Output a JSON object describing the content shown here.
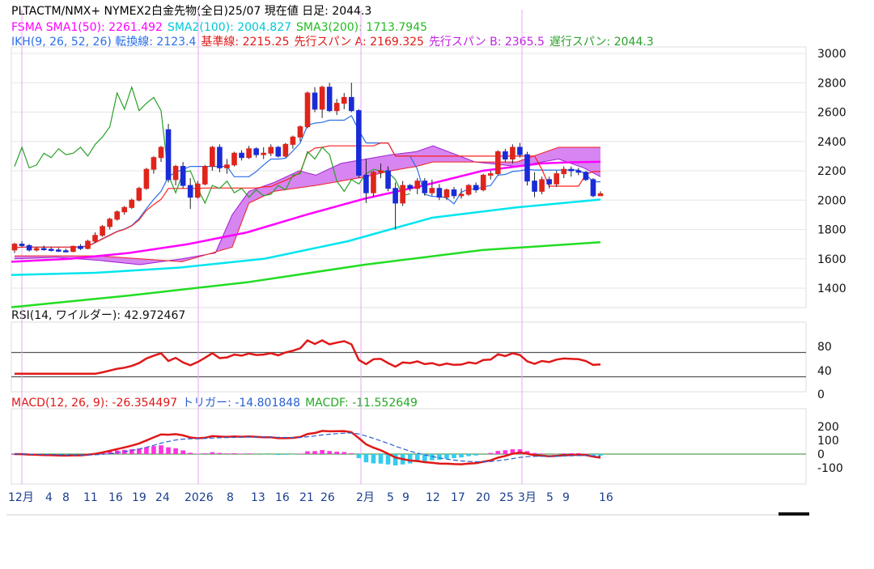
{
  "header": {
    "line1": "PLTACTM/NMX+ NYMEX2白金先物(全日)25/07  現在値 日足: 2044.3",
    "fsma_label": "FSMA SMA1(50): 2261.492",
    "sma2_label": "SMA2(100): 2004.827",
    "sma3_label": "SMA3(200): 1713.7945",
    "ikh_label": "IKH(9, 26, 52, 26) 転換線: 2123.4",
    "kijun_label": "基準線: 2215.25",
    "senkou_a_label": "先行スパン A: 2169.325",
    "senkou_b_label": "先行スパン B: 2365.5",
    "chikou_label": "遅行スパン: 2044.3"
  },
  "rsi_header": "RSI(14, ワイルダー): 42.972467",
  "macd_header": {
    "macd": "MACD(12, 26, 9): -26.354497",
    "trigger": "トリガー: -14.801848",
    "macdf": "MACDF: -11.552649"
  },
  "colors": {
    "up": "#e0241b",
    "down": "#1a2bd8",
    "sma1": "#ff00ff",
    "sma2": "#00e5ee",
    "sma3": "#22dd22",
    "tenkan": "#2a6fe8",
    "kijun": "#ff2020",
    "cloud": "#d070ee",
    "chikou": "#2aa02a",
    "grid": "#e6e6e6",
    "vline": "#e9a6f5"
  },
  "chart_data": [
    {
      "type": "candlestick",
      "title": "PLTACTM/NMX+ NYMEX2白金先物(全日)25/07",
      "y_ticks": [
        1400,
        1600,
        1800,
        2000,
        2200,
        2400,
        2600,
        2800,
        3000
      ],
      "ylim": [
        1300,
        3100
      ],
      "x_tick_labels": [
        "12月",
        "4",
        "8",
        "11",
        "16",
        "19",
        "24",
        "2026",
        "8",
        "13",
        "16",
        "21",
        "26",
        "2月",
        "5",
        "9",
        "12",
        "17",
        "20",
        "25",
        "3月",
        "5",
        "9",
        "16"
      ],
      "candles": [
        [
          1660,
          1710,
          1640,
          1700
        ],
        [
          1700,
          1720,
          1680,
          1690
        ],
        [
          1690,
          1700,
          1650,
          1660
        ],
        [
          1660,
          1680,
          1650,
          1670
        ],
        [
          1670,
          1690,
          1655,
          1665
        ],
        [
          1665,
          1680,
          1650,
          1660
        ],
        [
          1660,
          1675,
          1645,
          1655
        ],
        [
          1655,
          1670,
          1645,
          1650
        ],
        [
          1650,
          1690,
          1645,
          1685
        ],
        [
          1685,
          1700,
          1660,
          1670
        ],
        [
          1670,
          1730,
          1665,
          1720
        ],
        [
          1720,
          1780,
          1710,
          1760
        ],
        [
          1760,
          1830,
          1750,
          1820
        ],
        [
          1820,
          1880,
          1800,
          1870
        ],
        [
          1870,
          1930,
          1860,
          1920
        ],
        [
          1920,
          1960,
          1900,
          1950
        ],
        [
          1950,
          2010,
          1940,
          2000
        ],
        [
          2000,
          2090,
          1990,
          2080
        ],
        [
          2080,
          2220,
          2070,
          2210
        ],
        [
          2210,
          2300,
          2180,
          2290
        ],
        [
          2290,
          2370,
          2260,
          2360
        ],
        [
          2480,
          2520,
          2120,
          2140
        ],
        [
          2140,
          2240,
          2100,
          2230
        ],
        [
          2230,
          2260,
          2080,
          2100
        ],
        [
          2100,
          2150,
          1940,
          2020
        ],
        [
          2020,
          2130,
          2010,
          2110
        ],
        [
          2110,
          2240,
          2100,
          2230
        ],
        [
          2230,
          2370,
          2200,
          2360
        ],
        [
          2360,
          2380,
          2190,
          2220
        ],
        [
          2220,
          2280,
          2180,
          2240
        ],
        [
          2240,
          2330,
          2230,
          2320
        ],
        [
          2320,
          2340,
          2270,
          2290
        ],
        [
          2290,
          2370,
          2280,
          2350
        ],
        [
          2350,
          2360,
          2290,
          2310
        ],
        [
          2310,
          2360,
          2280,
          2320
        ],
        [
          2320,
          2380,
          2300,
          2360
        ],
        [
          2360,
          2370,
          2290,
          2300
        ],
        [
          2300,
          2390,
          2290,
          2380
        ],
        [
          2380,
          2440,
          2350,
          2430
        ],
        [
          2430,
          2510,
          2400,
          2500
        ],
        [
          2500,
          2740,
          2490,
          2730
        ],
        [
          2730,
          2770,
          2600,
          2620
        ],
        [
          2620,
          2780,
          2560,
          2770
        ],
        [
          2770,
          2800,
          2600,
          2610
        ],
        [
          2610,
          2690,
          2580,
          2660
        ],
        [
          2660,
          2730,
          2620,
          2700
        ],
        [
          2700,
          2800,
          2600,
          2610
        ],
        [
          2610,
          2620,
          2150,
          2170
        ],
        [
          2170,
          2280,
          1980,
          2050
        ],
        [
          2050,
          2200,
          2020,
          2190
        ],
        [
          2190,
          2250,
          2150,
          2200
        ],
        [
          2200,
          2230,
          2060,
          2080
        ],
        [
          2080,
          2120,
          1800,
          1980
        ],
        [
          1980,
          2130,
          1960,
          2100
        ],
        [
          2100,
          2110,
          2060,
          2080
        ],
        [
          2080,
          2150,
          2040,
          2130
        ],
        [
          2130,
          2150,
          2030,
          2050
        ],
        [
          2050,
          2140,
          2030,
          2080
        ],
        [
          2080,
          2110,
          2000,
          2020
        ],
        [
          2020,
          2080,
          2000,
          2070
        ],
        [
          2070,
          2090,
          2010,
          2030
        ],
        [
          2030,
          2080,
          2010,
          2040
        ],
        [
          2040,
          2110,
          2030,
          2100
        ],
        [
          2100,
          2120,
          2050,
          2070
        ],
        [
          2070,
          2180,
          2060,
          2170
        ],
        [
          2170,
          2200,
          2140,
          2180
        ],
        [
          2180,
          2340,
          2170,
          2330
        ],
        [
          2330,
          2350,
          2260,
          2280
        ],
        [
          2280,
          2380,
          2250,
          2360
        ],
        [
          2360,
          2390,
          2290,
          2310
        ],
        [
          2310,
          2330,
          2100,
          2130
        ],
        [
          2130,
          2190,
          2020,
          2060
        ],
        [
          2060,
          2160,
          2040,
          2140
        ],
        [
          2140,
          2160,
          2080,
          2110
        ],
        [
          2110,
          2200,
          2090,
          2180
        ],
        [
          2180,
          2230,
          2150,
          2210
        ],
        [
          2210,
          2230,
          2160,
          2200
        ],
        [
          2200,
          2220,
          2170,
          2190
        ],
        [
          2190,
          2200,
          2130,
          2140
        ],
        [
          2140,
          2150,
          2020,
          2030
        ],
        [
          2030,
          2060,
          2030,
          2044
        ]
      ],
      "sma1": [
        [
          0,
          1580
        ],
        [
          10,
          1600
        ],
        [
          20,
          1640
        ],
        [
          30,
          1700
        ],
        [
          40,
          1780
        ],
        [
          50,
          1900
        ],
        [
          60,
          2010
        ],
        [
          70,
          2100
        ],
        [
          80,
          2200
        ],
        [
          90,
          2250
        ],
        [
          95,
          2258
        ],
        [
          100,
          2261
        ]
      ],
      "sma2": [
        [
          0,
          1490
        ],
        [
          20,
          1505
        ],
        [
          40,
          1540
        ],
        [
          60,
          1600
        ],
        [
          80,
          1720
        ],
        [
          90,
          1800
        ],
        [
          100,
          1880
        ],
        [
          120,
          1950
        ],
        [
          140,
          2004
        ]
      ],
      "sma3": [
        [
          0,
          1270
        ],
        [
          40,
          1350
        ],
        [
          80,
          1440
        ],
        [
          120,
          1560
        ],
        [
          160,
          1660
        ],
        [
          200,
          1713
        ]
      ],
      "senkou_a": [
        [
          0,
          1600
        ],
        [
          10,
          1610
        ],
        [
          20,
          1590
        ],
        [
          30,
          1560
        ],
        [
          40,
          1600
        ],
        [
          48,
          1640
        ],
        [
          52,
          1900
        ],
        [
          56,
          2060
        ],
        [
          62,
          2120
        ],
        [
          68,
          2200
        ],
        [
          72,
          2170
        ],
        [
          78,
          2250
        ],
        [
          84,
          2280
        ],
        [
          90,
          2310
        ],
        [
          96,
          2330
        ],
        [
          100,
          2370
        ],
        [
          110,
          2260
        ],
        [
          120,
          2230
        ],
        [
          130,
          2280
        ],
        [
          136,
          2220
        ],
        [
          140,
          2160
        ]
      ],
      "senkou_b": [
        [
          0,
          1620
        ],
        [
          20,
          1620
        ],
        [
          40,
          1580
        ],
        [
          52,
          1680
        ],
        [
          56,
          1980
        ],
        [
          62,
          2060
        ],
        [
          72,
          2100
        ],
        [
          84,
          2160
        ],
        [
          90,
          2200
        ],
        [
          96,
          2230
        ],
        [
          100,
          2260
        ],
        [
          110,
          2260
        ],
        [
          120,
          2260
        ],
        [
          130,
          2360
        ],
        [
          140,
          2360
        ]
      ],
      "rsi_ticks": [
        40,
        80
      ],
      "rsi_levels": [
        30,
        70
      ],
      "macd_ticks": [
        -100,
        0,
        100,
        200
      ]
    }
  ]
}
